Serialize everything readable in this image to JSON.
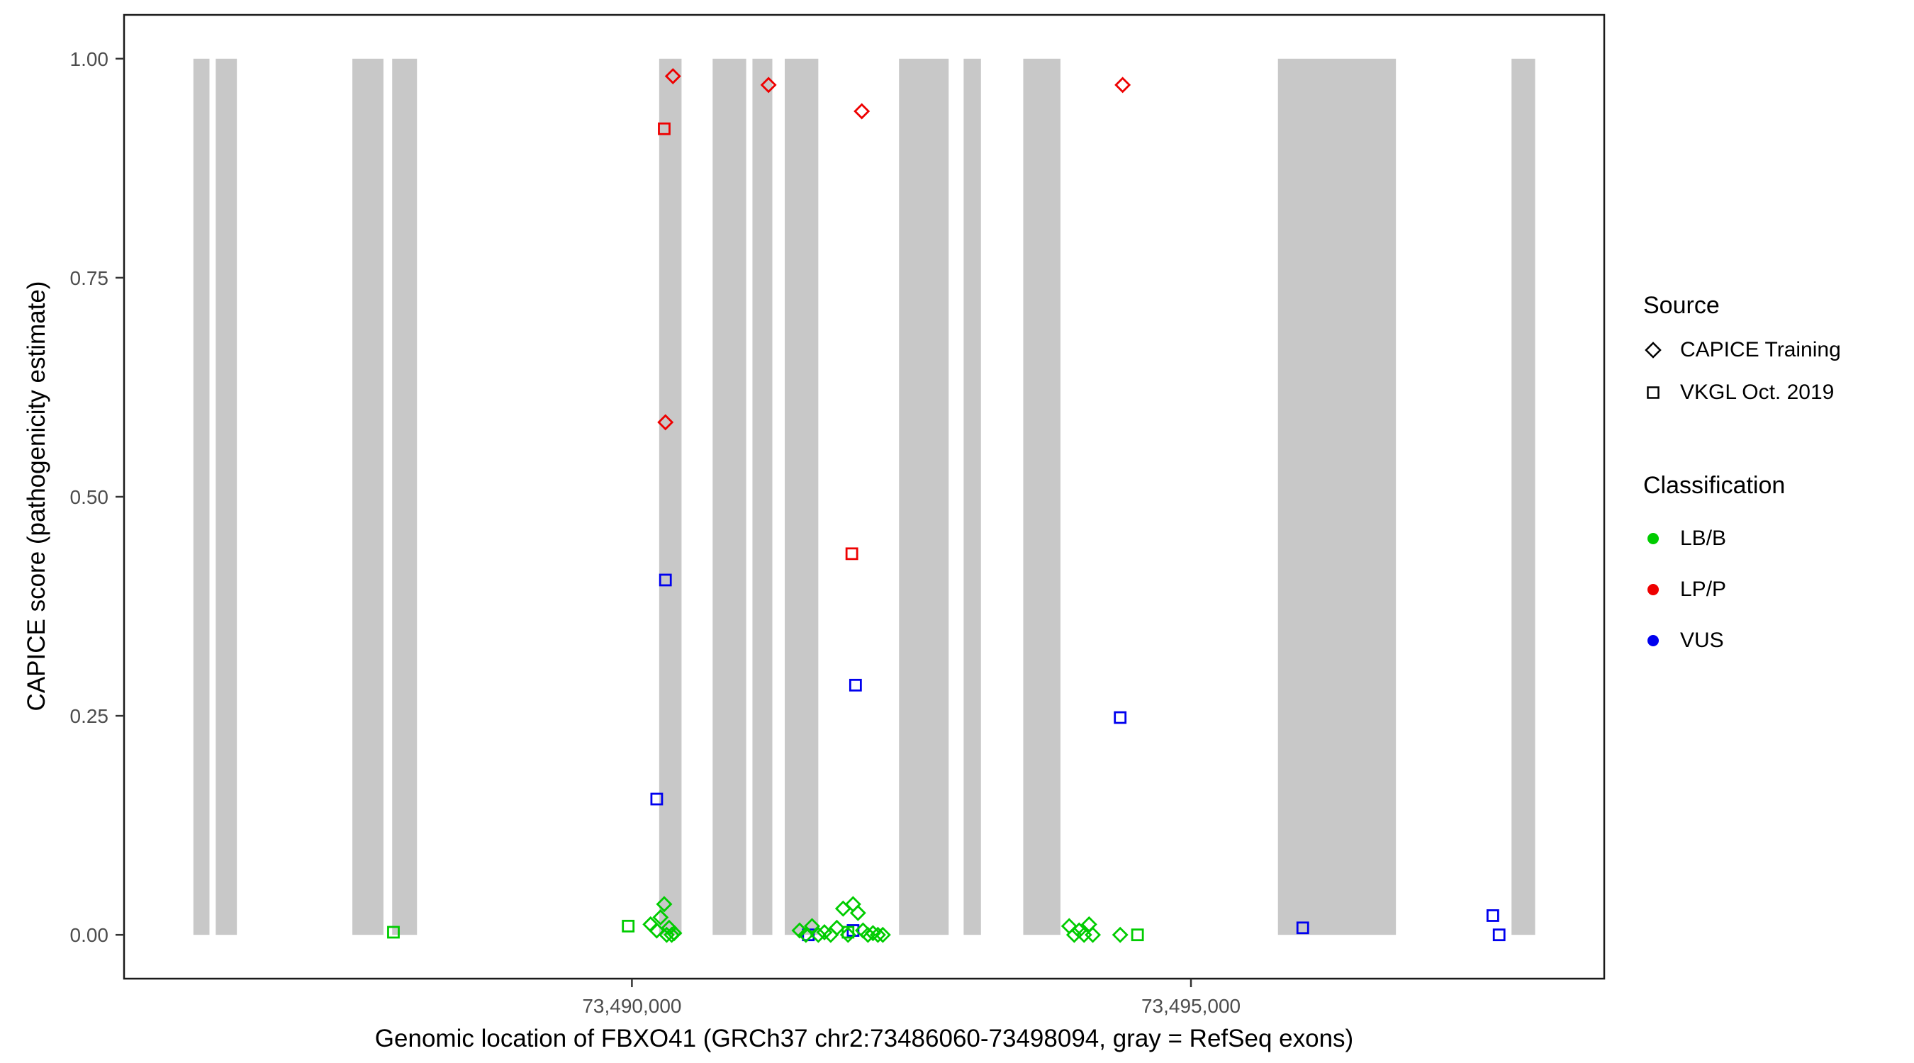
{
  "chart_data": {
    "type": "scatter",
    "title": "",
    "xlabel": "Genomic location of FBXO41 (GRCh37 chr2:73486060-73498094, gray = RefSeq exons)",
    "ylabel": "CAPICE score (pathogenicity estimate)",
    "x_domain": [
      73485458,
      73498696
    ],
    "y_domain": [
      -0.05,
      1.05
    ],
    "grid": "off",
    "legend_position": "right",
    "x_ticks": [
      {
        "value": 73490000,
        "label": "73,490,000"
      },
      {
        "value": 73495000,
        "label": "73,495,000"
      }
    ],
    "y_ticks": [
      {
        "value": 0.0,
        "label": "0.00"
      },
      {
        "value": 0.25,
        "label": "0.25"
      },
      {
        "value": 0.5,
        "label": "0.50"
      },
      {
        "value": 0.75,
        "label": "0.75"
      },
      {
        "value": 1.0,
        "label": "1.00"
      }
    ],
    "exon_color": "#c8c8c8",
    "exon_y_span": [
      0,
      1
    ],
    "exons": [
      [
        73486078,
        73486222
      ],
      [
        73486278,
        73486467
      ],
      [
        73487500,
        73487778
      ],
      [
        73487856,
        73488078
      ],
      [
        73490244,
        73490444
      ],
      [
        73490722,
        73491022
      ],
      [
        73491078,
        73491256
      ],
      [
        73491367,
        73491667
      ],
      [
        73492389,
        73492833
      ],
      [
        73492967,
        73493122
      ],
      [
        73493500,
        73493833
      ],
      [
        73495778,
        73496833
      ],
      [
        73497867,
        73498078
      ]
    ],
    "class_colors": {
      "LB/B": "#00cc00",
      "LP/P": "#ee0000",
      "VUS": "#0000ee"
    },
    "shape_by_source": {
      "CAPICE Training": "diamond",
      "VKGL Oct. 2019": "square"
    },
    "legend": {
      "source": {
        "title": "Source",
        "items": [
          {
            "label": "CAPICE Training",
            "shape": "diamond"
          },
          {
            "label": "VKGL Oct. 2019",
            "shape": "square"
          }
        ]
      },
      "classification": {
        "title": "Classification",
        "items": [
          {
            "label": "LB/B",
            "color": "#00cc00"
          },
          {
            "label": "LP/P",
            "color": "#ee0000"
          },
          {
            "label": "VUS",
            "color": "#0000ee"
          }
        ]
      }
    },
    "points": [
      {
        "x": 73490367,
        "y": 0.98,
        "source": "CAPICE Training",
        "class": "LP/P"
      },
      {
        "x": 73491222,
        "y": 0.97,
        "source": "CAPICE Training",
        "class": "LP/P"
      },
      {
        "x": 73492056,
        "y": 0.94,
        "source": "CAPICE Training",
        "class": "LP/P"
      },
      {
        "x": 73494389,
        "y": 0.97,
        "source": "CAPICE Training",
        "class": "LP/P"
      },
      {
        "x": 73490300,
        "y": 0.585,
        "source": "CAPICE Training",
        "class": "LP/P"
      },
      {
        "x": 73490289,
        "y": 0.92,
        "source": "VKGL Oct. 2019",
        "class": "LP/P"
      },
      {
        "x": 73491967,
        "y": 0.435,
        "source": "VKGL Oct. 2019",
        "class": "LP/P"
      },
      {
        "x": 73490300,
        "y": 0.405,
        "source": "VKGL Oct. 2019",
        "class": "VUS"
      },
      {
        "x": 73490222,
        "y": 0.155,
        "source": "VKGL Oct. 2019",
        "class": "VUS"
      },
      {
        "x": 73492000,
        "y": 0.285,
        "source": "VKGL Oct. 2019",
        "class": "VUS"
      },
      {
        "x": 73494367,
        "y": 0.248,
        "source": "VKGL Oct. 2019",
        "class": "VUS"
      },
      {
        "x": 73496000,
        "y": 0.008,
        "source": "VKGL Oct. 2019",
        "class": "VUS"
      },
      {
        "x": 73497700,
        "y": 0.022,
        "source": "VKGL Oct. 2019",
        "class": "VUS"
      },
      {
        "x": 73497756,
        "y": 0.0,
        "source": "VKGL Oct. 2019",
        "class": "VUS"
      },
      {
        "x": 73491978,
        "y": 0.005,
        "source": "VKGL Oct. 2019",
        "class": "VUS"
      },
      {
        "x": 73491578,
        "y": 0.0,
        "source": "VKGL Oct. 2019",
        "class": "VUS"
      },
      {
        "x": 73487867,
        "y": 0.003,
        "source": "VKGL Oct. 2019",
        "class": "LB/B"
      },
      {
        "x": 73489967,
        "y": 0.01,
        "source": "VKGL Oct. 2019",
        "class": "LB/B"
      },
      {
        "x": 73491933,
        "y": 0.003,
        "source": "VKGL Oct. 2019",
        "class": "LB/B"
      },
      {
        "x": 73494522,
        "y": 0.0,
        "source": "VKGL Oct. 2019",
        "class": "LB/B"
      },
      {
        "x": 73490167,
        "y": 0.012,
        "source": "CAPICE Training",
        "class": "LB/B"
      },
      {
        "x": 73490222,
        "y": 0.005,
        "source": "CAPICE Training",
        "class": "LB/B"
      },
      {
        "x": 73490256,
        "y": 0.02,
        "source": "CAPICE Training",
        "class": "LB/B"
      },
      {
        "x": 73490289,
        "y": 0.035,
        "source": "CAPICE Training",
        "class": "LB/B"
      },
      {
        "x": 73490311,
        "y": 0.0,
        "source": "CAPICE Training",
        "class": "LB/B"
      },
      {
        "x": 73490333,
        "y": 0.008,
        "source": "CAPICE Training",
        "class": "LB/B"
      },
      {
        "x": 73490356,
        "y": 0.0,
        "source": "CAPICE Training",
        "class": "LB/B"
      },
      {
        "x": 73490378,
        "y": 0.002,
        "source": "CAPICE Training",
        "class": "LB/B"
      },
      {
        "x": 73491500,
        "y": 0.005,
        "source": "CAPICE Training",
        "class": "LB/B"
      },
      {
        "x": 73491556,
        "y": 0.0,
        "source": "CAPICE Training",
        "class": "LB/B"
      },
      {
        "x": 73491611,
        "y": 0.01,
        "source": "CAPICE Training",
        "class": "LB/B"
      },
      {
        "x": 73491667,
        "y": 0.0,
        "source": "CAPICE Training",
        "class": "LB/B"
      },
      {
        "x": 73491722,
        "y": 0.003,
        "source": "CAPICE Training",
        "class": "LB/B"
      },
      {
        "x": 73491778,
        "y": 0.0,
        "source": "CAPICE Training",
        "class": "LB/B"
      },
      {
        "x": 73491833,
        "y": 0.008,
        "source": "CAPICE Training",
        "class": "LB/B"
      },
      {
        "x": 73491889,
        "y": 0.03,
        "source": "CAPICE Training",
        "class": "LB/B"
      },
      {
        "x": 73491933,
        "y": 0.0,
        "source": "CAPICE Training",
        "class": "LB/B"
      },
      {
        "x": 73491978,
        "y": 0.035,
        "source": "CAPICE Training",
        "class": "LB/B"
      },
      {
        "x": 73492022,
        "y": 0.025,
        "source": "CAPICE Training",
        "class": "LB/B"
      },
      {
        "x": 73492067,
        "y": 0.005,
        "source": "CAPICE Training",
        "class": "LB/B"
      },
      {
        "x": 73492111,
        "y": 0.0,
        "source": "CAPICE Training",
        "class": "LB/B"
      },
      {
        "x": 73492156,
        "y": 0.002,
        "source": "CAPICE Training",
        "class": "LB/B"
      },
      {
        "x": 73492200,
        "y": 0.0,
        "source": "CAPICE Training",
        "class": "LB/B"
      },
      {
        "x": 73492244,
        "y": 0.0,
        "source": "CAPICE Training",
        "class": "LB/B"
      },
      {
        "x": 73493911,
        "y": 0.01,
        "source": "CAPICE Training",
        "class": "LB/B"
      },
      {
        "x": 73493956,
        "y": 0.0,
        "source": "CAPICE Training",
        "class": "LB/B"
      },
      {
        "x": 73494000,
        "y": 0.005,
        "source": "CAPICE Training",
        "class": "LB/B"
      },
      {
        "x": 73494044,
        "y": 0.0,
        "source": "CAPICE Training",
        "class": "LB/B"
      },
      {
        "x": 73494089,
        "y": 0.012,
        "source": "CAPICE Training",
        "class": "LB/B"
      },
      {
        "x": 73494122,
        "y": 0.0,
        "source": "CAPICE Training",
        "class": "LB/B"
      },
      {
        "x": 73494367,
        "y": 0.0,
        "source": "CAPICE Training",
        "class": "LB/B"
      }
    ]
  }
}
